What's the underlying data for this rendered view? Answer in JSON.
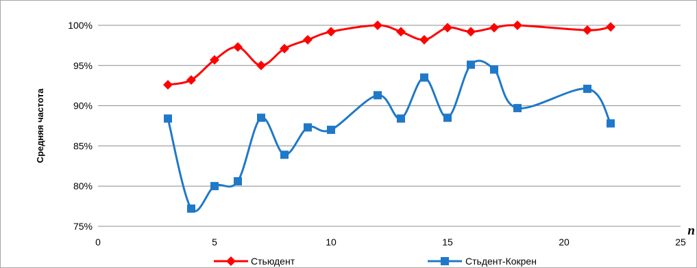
{
  "chart_data": {
    "type": "line",
    "title": "",
    "xlabel": "n",
    "ylabel": "Средняя  частота",
    "xlim": [
      0,
      25
    ],
    "ylim": [
      0.75,
      1.0
    ],
    "xticks": [
      0,
      5,
      10,
      15,
      20,
      25
    ],
    "yticks": [
      0.75,
      0.8,
      0.85,
      0.9,
      0.95,
      1.0
    ],
    "ytick_labels": [
      "75%",
      "80%",
      "85%",
      "90%",
      "95%",
      "100%"
    ],
    "grid": "horizontal",
    "legend": "bottom",
    "smooth": true,
    "series": [
      {
        "name": "Стьюдент",
        "color": "#ff0000",
        "marker": "diamond",
        "x": [
          3,
          4,
          5,
          6,
          7,
          8,
          9,
          10,
          12,
          13,
          14,
          15,
          16,
          17,
          18,
          21,
          22
        ],
        "y": [
          0.926,
          0.932,
          0.957,
          0.973,
          0.95,
          0.971,
          0.982,
          0.992,
          1.0,
          0.992,
          0.982,
          0.997,
          0.992,
          0.997,
          1.0,
          0.994,
          0.998
        ]
      },
      {
        "name": "Стьдент-Кокрен",
        "color": "#1f78c8",
        "marker": "square",
        "x": [
          3,
          4,
          5,
          6,
          7,
          8,
          9,
          10,
          12,
          13,
          14,
          15,
          16,
          17,
          18,
          21,
          22
        ],
        "y": [
          0.884,
          0.772,
          0.8,
          0.806,
          0.885,
          0.839,
          0.873,
          0.87,
          0.913,
          0.884,
          0.935,
          0.885,
          0.951,
          0.945,
          0.897,
          0.921,
          0.878
        ]
      }
    ]
  }
}
